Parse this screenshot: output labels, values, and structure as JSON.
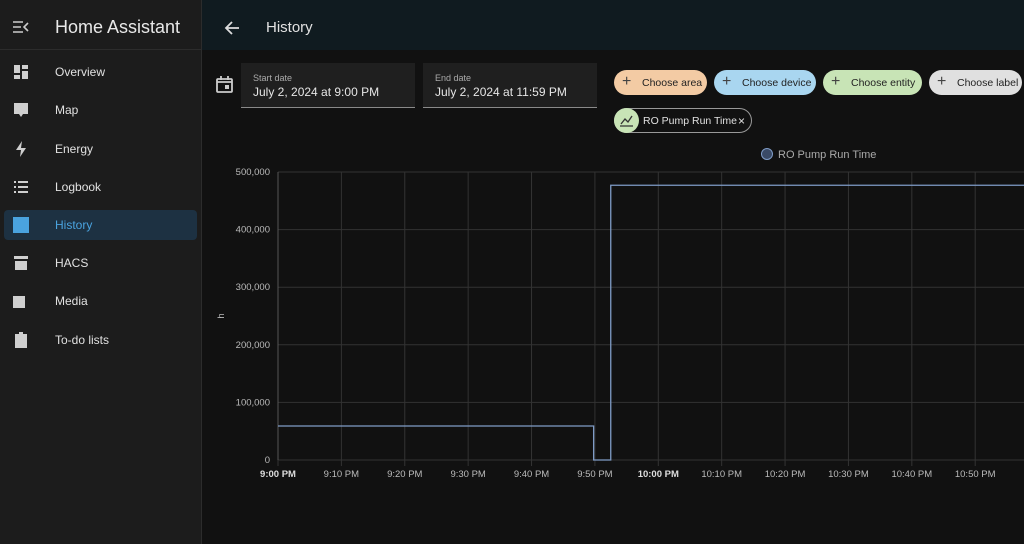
{
  "sidebar": {
    "title": "Home Assistant",
    "items": [
      "Overview",
      "Map",
      "Energy",
      "Logbook",
      "History",
      "HACS",
      "Media",
      "To-do lists"
    ],
    "active": 4
  },
  "header": {
    "title": "History"
  },
  "filters": {
    "start_label": "Start date",
    "start_value": "July 2, 2024 at 9:00 PM",
    "end_label": "End date",
    "end_value": "July 2, 2024 at 11:59 PM",
    "chips": [
      {
        "label": "Choose area",
        "color": "#f3cba4"
      },
      {
        "label": "Choose device",
        "color": "#a9d6f0"
      },
      {
        "label": "Choose entity",
        "color": "#c8e4b6"
      },
      {
        "label": "Choose label",
        "color": "#e0e0e0"
      }
    ],
    "selected": "RO Pump Run Time"
  },
  "chart_data": {
    "type": "line",
    "ylabel": "h",
    "x": [
      0,
      49.8,
      49.8,
      52.5,
      52.5,
      117.7
    ],
    "series": [
      {
        "name": "RO Pump Run Time",
        "color": "#7f9cc7",
        "values": [
          59000,
          59000,
          0,
          0,
          477000,
          477000
        ]
      }
    ],
    "xlim": [
      0,
      117.7
    ],
    "xticks": [
      {
        "value": 0,
        "label": "9:00 PM",
        "bold": true
      },
      {
        "value": 10,
        "label": "9:10 PM"
      },
      {
        "value": 20,
        "label": "9:20 PM"
      },
      {
        "value": 30,
        "label": "9:30 PM"
      },
      {
        "value": 40,
        "label": "9:40 PM"
      },
      {
        "value": 50,
        "label": "9:50 PM"
      },
      {
        "value": 60,
        "label": "10:00 PM",
        "bold": true
      },
      {
        "value": 70,
        "label": "10:10 PM"
      },
      {
        "value": 80,
        "label": "10:20 PM"
      },
      {
        "value": 90,
        "label": "10:30 PM"
      },
      {
        "value": 100,
        "label": "10:40 PM"
      },
      {
        "value": 110,
        "label": "10:50 PM"
      }
    ],
    "ylim": [
      0,
      500000
    ],
    "yticks": [
      0,
      {
        "value": 100000,
        "label": "100,000"
      },
      {
        "value": 200000,
        "label": "200,000"
      },
      {
        "value": 300000,
        "label": "300,000"
      },
      {
        "value": 400000,
        "label": "400,000"
      },
      {
        "value": 500000,
        "label": "500,000"
      }
    ],
    "grid": true
  }
}
